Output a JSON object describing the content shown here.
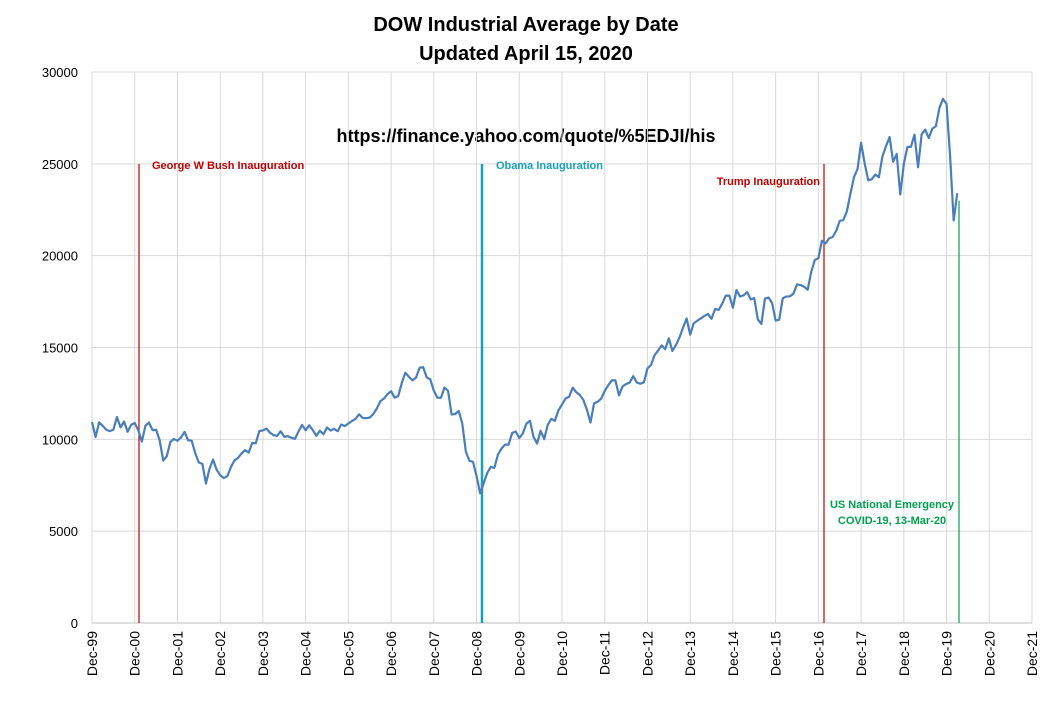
{
  "chart_data": {
    "type": "line",
    "title": [
      "DOW Industrial Average by Date",
      "Updated April 15, 2020"
    ],
    "source": "https://finance.yahoo.com/quote/%5EDJI/his",
    "color": "#4a7ebb",
    "grid": true,
    "ylim": [
      0,
      30000
    ],
    "yticks": [
      0,
      5000,
      10000,
      15000,
      20000,
      25000,
      30000
    ],
    "annotations": [
      {
        "text": [
          "George W Bush Inauguration"
        ],
        "color": "#c00000"
      },
      {
        "text": [
          "Obama Inauguration"
        ],
        "color": "#17a2b8"
      },
      {
        "text": [
          "Trump Inauguration"
        ],
        "color": "#c00000"
      },
      {
        "text": [
          "US National Emergency",
          "COVID-19, 13-Mar-20"
        ],
        "color": "#00a050"
      }
    ],
    "categories": [
      "Dec-99",
      null,
      null,
      null,
      null,
      null,
      null,
      null,
      null,
      null,
      null,
      null,
      "Dec-00",
      null,
      null,
      null,
      null,
      null,
      null,
      null,
      null,
      null,
      null,
      null,
      "Dec-01",
      null,
      null,
      null,
      null,
      null,
      null,
      null,
      null,
      null,
      null,
      null,
      "Dec-02",
      null,
      null,
      null,
      null,
      null,
      null,
      null,
      null,
      null,
      null,
      null,
      "Dec-03",
      null,
      null,
      null,
      null,
      null,
      null,
      null,
      null,
      null,
      null,
      null,
      "Dec-04",
      null,
      null,
      null,
      null,
      null,
      null,
      null,
      null,
      null,
      null,
      null,
      "Dec-05",
      null,
      null,
      null,
      null,
      null,
      null,
      null,
      null,
      null,
      null,
      null,
      "Dec-06",
      null,
      null,
      null,
      null,
      null,
      null,
      null,
      null,
      null,
      null,
      null,
      "Dec-07",
      null,
      null,
      null,
      null,
      null,
      null,
      null,
      null,
      null,
      null,
      null,
      "Dec-08",
      null,
      null,
      null,
      null,
      null,
      null,
      null,
      null,
      null,
      null,
      null,
      "Dec-09",
      null,
      null,
      null,
      null,
      null,
      null,
      null,
      null,
      null,
      null,
      null,
      "Dec-10",
      null,
      null,
      null,
      null,
      null,
      null,
      null,
      null,
      null,
      null,
      null,
      "Dec-11",
      null,
      null,
      null,
      null,
      null,
      null,
      null,
      null,
      null,
      null,
      null,
      "Dec-12",
      null,
      null,
      null,
      null,
      null,
      null,
      null,
      null,
      null,
      null,
      null,
      "Dec-13",
      null,
      null,
      null,
      null,
      null,
      null,
      null,
      null,
      null,
      null,
      null,
      "Dec-14",
      null,
      null,
      null,
      null,
      null,
      null,
      null,
      null,
      null,
      null,
      null,
      "Dec-15",
      null,
      null,
      null,
      null,
      null,
      null,
      null,
      null,
      null,
      null,
      null,
      "Dec-16",
      null,
      null,
      null,
      null,
      null,
      null,
      null,
      null,
      null,
      null,
      null,
      "Dec-17",
      null,
      null,
      null,
      null,
      null,
      null,
      null,
      null,
      null,
      null,
      null,
      "Dec-18",
      null,
      null,
      null,
      null,
      null,
      null,
      null,
      null,
      null,
      null,
      null,
      "Dec-19",
      null,
      null,
      null,
      null,
      null,
      null,
      null,
      null,
      null,
      null,
      null,
      "Dec-20",
      null,
      null,
      null,
      null,
      null,
      null,
      null,
      null,
      null,
      null,
      null,
      "Dec-21"
    ],
    "values": [
      10941,
      10128,
      10922,
      10734,
      10522,
      10448,
      10522,
      11215,
      10651,
      10971,
      10415,
      10788,
      10887,
      10495,
      9879,
      10735,
      10912,
      10502,
      10523,
      9950,
      8848,
      9075,
      9852,
      10022,
      9920,
      10106,
      10404,
      9946,
      9925,
      9243,
      8737,
      8664,
      7592,
      8397,
      8896,
      8342,
      8054,
      7891,
      7992,
      8480,
      8850,
      8985,
      9234,
      9416,
      9275,
      9801,
      9782,
      10454,
      10488,
      10584,
      10358,
      10226,
      10188,
      10435,
      10140,
      10174,
      10080,
      10027,
      10428,
      10783,
      10490,
      10766,
      10504,
      10193,
      10467,
      10275,
      10641,
      10482,
      10569,
      10440,
      10806,
      10718,
      10865,
      10993,
      11109,
      11367,
      11168,
      11150,
      11186,
      11381,
      11679,
      12081,
      12221,
      12463,
      12622,
      12269,
      12354,
      13063,
      13628,
      13409,
      13212,
      13358,
      13896,
      13930,
      13372,
      13265,
      12650,
      12266,
      12263,
      12820,
      12638,
      11350,
      11378,
      11544,
      10851,
      9325,
      8829,
      8776,
      8001,
      7063,
      7609,
      8168,
      8500,
      8447,
      9172,
      9496,
      9712,
      9713,
      10345,
      10428,
      10067,
      10325,
      10857,
      11009,
      10137,
      9774,
      10466,
      10015,
      10788,
      11118,
      11006,
      11578,
      11892,
      12226,
      12320,
      12811,
      12570,
      12414,
      12143,
      11614,
      10913,
      11955,
      12046,
      12218,
      12633,
      12952,
      13212,
      13214,
      12393,
      12880,
      13009,
      13091,
      13437,
      13096,
      13026,
      13104,
      13861,
      14054,
      14579,
      14840,
      15116,
      14910,
      15500,
      14810,
      15130,
      15546,
      16086,
      16577,
      15699,
      16322,
      16458,
      16581,
      16717,
      16827,
      16563,
      17098,
      17043,
      17391,
      17828,
      17823,
      17165,
      18133,
      17776,
      17841,
      18011,
      17620,
      17690,
      16528,
      16285,
      17664,
      17720,
      17425,
      16466,
      16517,
      17685,
      17774,
      17787,
      17930,
      18432,
      18401,
      18308,
      18142,
      19124,
      19763,
      19864,
      20812,
      20663,
      20941,
      21009,
      21350,
      21891,
      21948,
      22405,
      23377,
      24272,
      24719,
      26149,
      25029,
      24103,
      24163,
      24416,
      24271,
      25415,
      25965,
      26458,
      25116,
      25538,
      23327,
      24999,
      25916,
      25929,
      26593,
      24815,
      26600,
      26864,
      26403,
      26917,
      27046,
      28051,
      28538,
      28256,
      25409,
      21917,
      23400,
      null,
      null,
      null,
      null,
      null,
      null,
      null,
      null,
      null,
      null,
      null,
      null,
      null,
      null,
      null,
      null,
      null,
      null,
      null,
      null,
      null
    ]
  }
}
